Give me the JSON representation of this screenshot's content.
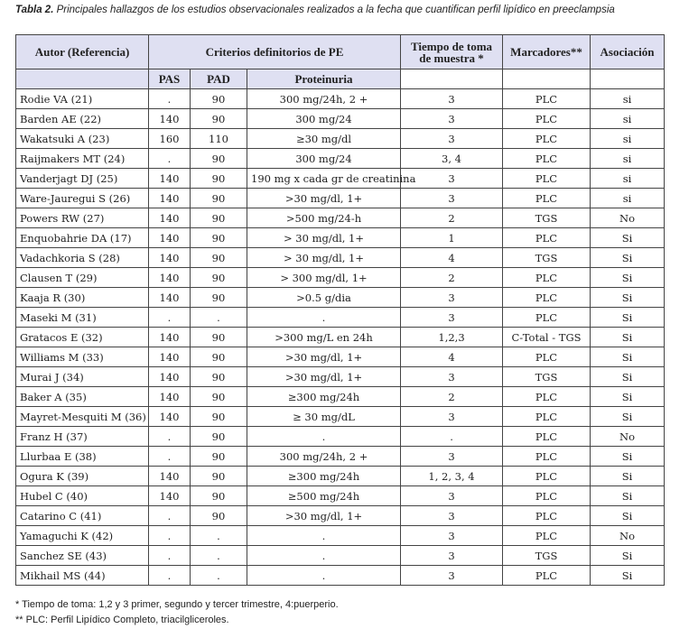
{
  "caption": {
    "label": "Tabla 2.",
    "text": "Principales hallazgos de los estudios observacionales realizados a la fecha que cuantifican perfil lipídico en preeclampsia"
  },
  "table": {
    "header_top": [
      "Autor (Referencia)",
      "Criterios definitorios de PE",
      "Tiempo de toma de muestra *",
      "Marcadores**",
      "Asociación"
    ],
    "header_sub": [
      "PAS",
      "PAD",
      "Proteinuria"
    ],
    "rows": [
      [
        "Rodie VA (21)",
        ".",
        "90",
        "300 mg/24h, 2 +",
        "3",
        "PLC",
        "si"
      ],
      [
        "Barden AE (22)",
        "140",
        "90",
        "300 mg/24",
        "3",
        "PLC",
        "si"
      ],
      [
        "Wakatsuki A (23)",
        "160",
        "110",
        "≥30 mg/dl",
        "3",
        "PLC",
        "si"
      ],
      [
        "Raijmakers MT (24)",
        ".",
        "90",
        "300 mg/24",
        "3, 4",
        "PLC",
        "si"
      ],
      [
        "Vanderjagt DJ (25)",
        "140",
        "90",
        "190 mg x cada gr de creatinina",
        "3",
        "PLC",
        "si"
      ],
      [
        "Ware-Jauregui S (26)",
        "140",
        "90",
        ">30 mg/dl, 1+",
        "3",
        "PLC",
        "si"
      ],
      [
        "Powers RW (27)",
        "140",
        "90",
        ">500 mg/24-h",
        "2",
        "TGS",
        "No"
      ],
      [
        "Enquobahrie DA (17)",
        "140",
        "90",
        "> 30 mg/dl, 1+",
        "1",
        "PLC",
        "Si"
      ],
      [
        "Vadachkoria S (28)",
        "140",
        "90",
        "> 30 mg/dl, 1+",
        "4",
        "TGS",
        "Si"
      ],
      [
        "Clausen T (29)",
        "140",
        "90",
        "> 300 mg/dl, 1+",
        "2",
        "PLC",
        "Si"
      ],
      [
        "Kaaja R (30)",
        "140",
        "90",
        ">0.5 g/dia",
        "3",
        "PLC",
        "Si"
      ],
      [
        "Maseki M (31)",
        ".",
        ".",
        ".",
        "3",
        "PLC",
        "Si"
      ],
      [
        "Gratacos E (32)",
        "140",
        "90",
        ">300 mg/L en 24h",
        "1,2,3",
        "C-Total - TGS",
        "Si"
      ],
      [
        "Williams M (33)",
        "140",
        "90",
        ">30 mg/dl, 1+",
        "4",
        "PLC",
        "Si"
      ],
      [
        "Murai J (34)",
        "140",
        "90",
        ">30 mg/dl, 1+",
        "3",
        "TGS",
        "Si"
      ],
      [
        "Baker A (35)",
        "140",
        "90",
        "≥300 mg/24h",
        "2",
        "PLC",
        "Si"
      ],
      [
        "Mayret-Mesquiti M (36)",
        "140",
        "90",
        "≥ 30 mg/dL",
        "3",
        "PLC",
        "Si"
      ],
      [
        "Franz H (37)",
        ".",
        "90",
        ".",
        ".",
        "PLC",
        "No"
      ],
      [
        "Llurbaa E (38)",
        ".",
        "90",
        "300 mg/24h, 2 +",
        "3",
        "PLC",
        "Si"
      ],
      [
        "Ogura K (39)",
        "140",
        "90",
        "≥300 mg/24h",
        "1, 2, 3, 4",
        "PLC",
        "Si"
      ],
      [
        "Hubel C (40)",
        "140",
        "90",
        "≥500 mg/24h",
        "3",
        "PLC",
        "Si"
      ],
      [
        "Catarino C (41)",
        ".",
        "90",
        ">30 mg/dl, 1+",
        "3",
        "PLC",
        "Si"
      ],
      [
        "Yamaguchi K (42)",
        ".",
        ".",
        ".",
        "3",
        "PLC",
        "No"
      ],
      [
        "Sanchez SE (43)",
        ".",
        ".",
        ".",
        "3",
        "TGS",
        "Si"
      ],
      [
        "Mikhail MS (44)",
        ".",
        ".",
        ".",
        "3",
        "PLC",
        "Si"
      ]
    ]
  },
  "footnotes": [
    "* Tiempo de toma: 1,2 y 3 primer, segundo y tercer trimestre, 4:puerperio.",
    "** PLC: Perfil Lipídico Completo, triacilgliceroles."
  ]
}
